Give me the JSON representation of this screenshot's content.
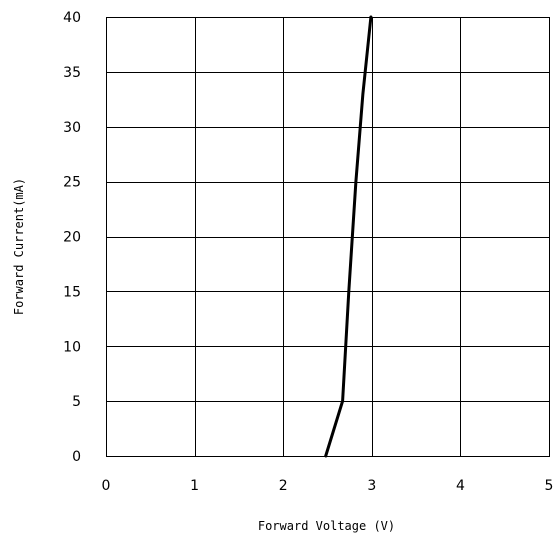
{
  "chart_data": {
    "type": "line",
    "title": "",
    "xlabel": "Forward Voltage (V)",
    "ylabel": "Forward Current(mA)",
    "xlim": [
      0,
      5
    ],
    "ylim": [
      0,
      40
    ],
    "xticks": [
      0,
      1,
      2,
      3,
      4,
      5
    ],
    "yticks": [
      0,
      5,
      10,
      15,
      20,
      25,
      30,
      35,
      40
    ],
    "grid": true,
    "legend": "none",
    "series": [
      {
        "color": "#000000",
        "x": [
          2.48,
          2.67,
          2.74,
          2.82,
          2.9,
          2.99
        ],
        "y": [
          0,
          5,
          15,
          25,
          33,
          40
        ]
      }
    ]
  }
}
